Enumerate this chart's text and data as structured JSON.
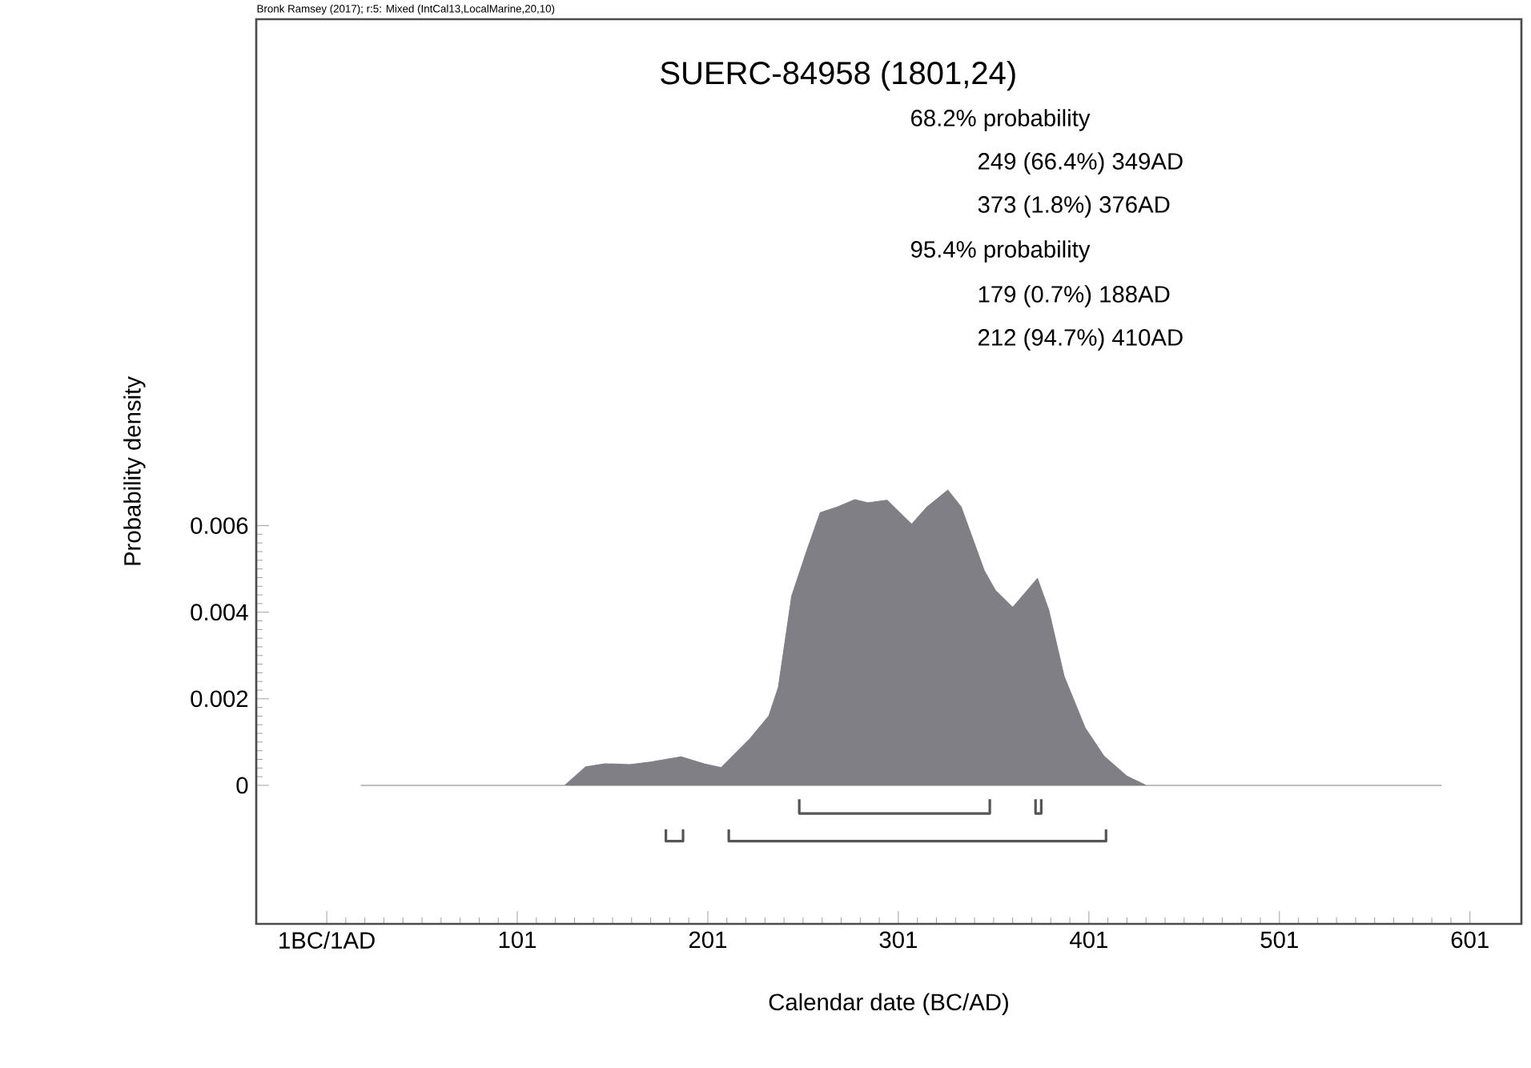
{
  "chart_data": {
    "type": "area",
    "title": "SUERC-84958 (1801,24)",
    "xlabel": "Calendar date (BC/AD)",
    "ylabel": "Probability density",
    "annotations": [
      "Bronk Ramsey (2017); r:5: Mixed (IntCal13,LocalMarine,20,10)",
      "68.2% probability",
      "249 (66.4%) 349AD",
      "373 (1.8%) 376AD",
      "95.4% probability",
      "179 (0.7%) 188AD",
      "212 (94.7%) 410AD"
    ],
    "xlim": [
      -36,
      628
    ],
    "ylim": [
      -0.0032,
      0.0177
    ],
    "xticks": [
      {
        "value": 1,
        "label": "1BC/1AD"
      },
      101,
      201,
      301,
      401,
      501,
      601
    ],
    "yticks": [
      0,
      0.002,
      0.004,
      0.006
    ],
    "series": [
      {
        "color": "#7f7f85",
        "x": [
          19,
          126,
          137,
          147,
          160,
          171,
          187,
          199,
          208,
          223,
          233,
          238,
          245,
          253,
          260,
          269,
          278,
          285,
          295,
          308,
          316,
          327,
          334,
          346,
          352,
          361,
          374,
          380,
          388,
          399,
          409,
          421,
          431,
          586
        ],
        "values": [
          0,
          0,
          0.00043,
          0.0005,
          0.00048,
          0.00054,
          0.00066,
          0.0005,
          0.00041,
          0.00107,
          0.0016,
          0.00226,
          0.00437,
          0.00543,
          0.0063,
          0.00643,
          0.0066,
          0.00653,
          0.00659,
          0.00603,
          0.00643,
          0.00682,
          0.00643,
          0.00497,
          0.0045,
          0.00411,
          0.00478,
          0.00404,
          0.00252,
          0.00133,
          0.00067,
          0.00021,
          0,
          0
        ]
      },
      {
        "type": "line",
        "color": "#555555",
        "x": [
          249,
          249,
          349,
          349,
          360,
          373,
          373,
          376,
          376
        ],
        "values": [
          -0.00032,
          -0.00065,
          -0.00065,
          -0.00032,
          null,
          -0.00032,
          -0.00065,
          -0.00065,
          -0.00032
        ]
      },
      {
        "type": "line",
        "color": "#555555",
        "x": [
          179,
          179,
          188,
          188,
          200,
          212,
          212,
          410,
          410
        ],
        "values": [
          -0.00102,
          -0.00129,
          -0.00129,
          -0.00102,
          null,
          -0.00102,
          -0.00129,
          -0.00129,
          -0.00102
        ]
      }
    ]
  }
}
